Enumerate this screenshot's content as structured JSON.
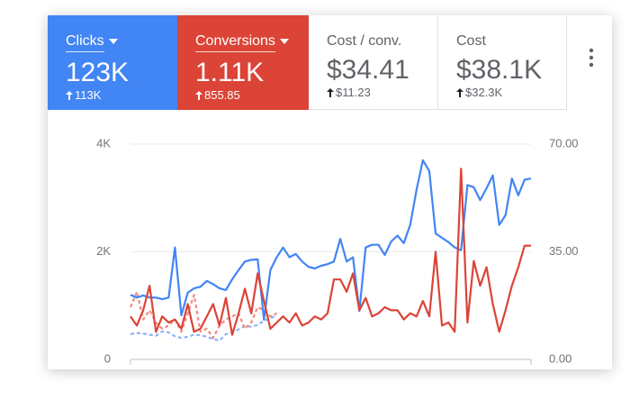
{
  "metrics": [
    {
      "label": "Clicks",
      "value": "123K",
      "change": "113K"
    },
    {
      "label": "Conversions",
      "value": "1.11K",
      "change": "855.85"
    },
    {
      "label": "Cost / conv.",
      "value": "$34.41",
      "change": "$11.23"
    },
    {
      "label": "Cost",
      "value": "$38.1K",
      "change": "$32.3K"
    }
  ],
  "chart_data": {
    "type": "line",
    "ylim": [
      0,
      4000
    ],
    "yticks": [
      0,
      {
        "value": 2000,
        "label": "2K"
      },
      {
        "value": 4000,
        "label": "4K"
      }
    ],
    "y2lim": [
      0,
      70
    ],
    "y2ticks": [
      {
        "value": 0,
        "label": "0.00"
      },
      {
        "value": 35,
        "label": "35.00"
      },
      {
        "value": 70,
        "label": "70.00"
      }
    ],
    "grid": true,
    "series": [
      {
        "color": "#8ab4f8",
        "dashed": true,
        "values": [
          470,
          490,
          480,
          460,
          440,
          520,
          500,
          430,
          400,
          420,
          460,
          450,
          420,
          380,
          350,
          470,
          500,
          560,
          620,
          610,
          640,
          720,
          760,
          830,
          null,
          null,
          null,
          null,
          null,
          null,
          null,
          null,
          null,
          null,
          null,
          null,
          null,
          null,
          null,
          null,
          null,
          null,
          null,
          null,
          null,
          null,
          null,
          null,
          null,
          null,
          null,
          null,
          null,
          null,
          null,
          null,
          null,
          null,
          null,
          null,
          null,
          null,
          null,
          null
        ]
      },
      {
        "color": "#f28b82",
        "dashed": true,
        "axis": "y2",
        "values": [
          17,
          22,
          13,
          16,
          12,
          10,
          11,
          13,
          9,
          15,
          21,
          9,
          10,
          7,
          11,
          13,
          14,
          15,
          10,
          12,
          17,
          16,
          14,
          15,
          null,
          null,
          null,
          null,
          null,
          null,
          null,
          null,
          null,
          null,
          null,
          null,
          null,
          null,
          null,
          null,
          null,
          null,
          null,
          null,
          null,
          null,
          null,
          null,
          null,
          null,
          null,
          null,
          null,
          null,
          null,
          null,
          null,
          null,
          null,
          null,
          null,
          null,
          null,
          null
        ]
      },
      {
        "color": "#4285f4",
        "values": [
          1200,
          1150,
          1190,
          1150,
          1150,
          1120,
          1150,
          2080,
          820,
          1240,
          1320,
          1350,
          1460,
          1400,
          1320,
          1290,
          1490,
          1660,
          1820,
          1850,
          1860,
          740,
          1660,
          1900,
          2080,
          1900,
          1960,
          1820,
          1720,
          1690,
          1740,
          1770,
          1820,
          2240,
          1820,
          1900,
          900,
          2080,
          2130,
          2130,
          1940,
          2190,
          2300,
          2160,
          2500,
          3160,
          3700,
          3500,
          2340,
          2260,
          2180,
          2080,
          2030,
          3240,
          3200,
          2960,
          3180,
          3420,
          2500,
          2680,
          3360,
          3050,
          3340,
          3360
        ]
      },
      {
        "color": "#db4437",
        "axis": "y2",
        "values": [
          14,
          11,
          16,
          24,
          9,
          14,
          12,
          13,
          10,
          18,
          9,
          10,
          14,
          18,
          11,
          20,
          8,
          15,
          23,
          15,
          28,
          19,
          10,
          12,
          14,
          12,
          15,
          11,
          12,
          14,
          13,
          15,
          26,
          26,
          22,
          28,
          16,
          20,
          14,
          15,
          17,
          16,
          16,
          13,
          15,
          14,
          19,
          14,
          35,
          11,
          12,
          9,
          62,
          12,
          32,
          24,
          30,
          18,
          9,
          16,
          24,
          30,
          37,
          37
        ]
      }
    ]
  }
}
